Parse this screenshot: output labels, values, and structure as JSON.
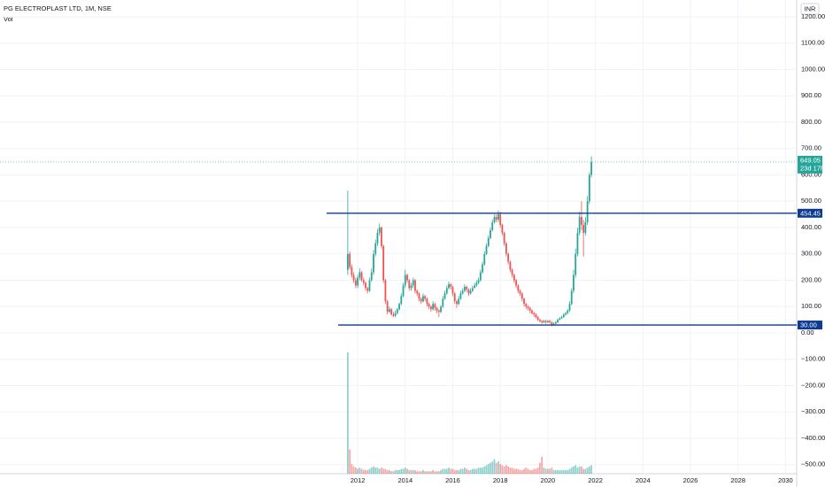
{
  "chart_data": {
    "type": "candlestick",
    "title": "PG ELECTROPLAST LTD, 1M, NSE",
    "volume_label": "Vol",
    "currency": "INR",
    "countdown": "23d 17h",
    "up_color": "#26a69a",
    "down_color": "#ef5350",
    "line_color": "#0d3b91",
    "grid": true,
    "x": [
      2011.583,
      2011.667,
      2011.75,
      2011.833,
      2011.917,
      2012,
      2012.083,
      2012.167,
      2012.25,
      2012.333,
      2012.417,
      2012.5,
      2012.583,
      2012.667,
      2012.75,
      2012.833,
      2012.917,
      2013,
      2013.083,
      2013.167,
      2013.25,
      2013.333,
      2013.417,
      2013.5,
      2013.583,
      2013.667,
      2013.75,
      2013.833,
      2013.917,
      2014,
      2014.083,
      2014.167,
      2014.25,
      2014.333,
      2014.417,
      2014.5,
      2014.583,
      2014.667,
      2014.75,
      2014.833,
      2014.917,
      2015,
      2015.083,
      2015.167,
      2015.25,
      2015.333,
      2015.417,
      2015.5,
      2015.583,
      2015.667,
      2015.75,
      2015.833,
      2015.917,
      2016,
      2016.083,
      2016.167,
      2016.25,
      2016.333,
      2016.417,
      2016.5,
      2016.583,
      2016.667,
      2016.75,
      2016.833,
      2016.917,
      2017,
      2017.083,
      2017.167,
      2017.25,
      2017.333,
      2017.417,
      2017.5,
      2017.583,
      2017.667,
      2017.75,
      2017.833,
      2017.917,
      2018,
      2018.083,
      2018.167,
      2018.25,
      2018.333,
      2018.417,
      2018.5,
      2018.583,
      2018.667,
      2018.75,
      2018.833,
      2018.917,
      2019,
      2019.083,
      2019.167,
      2019.25,
      2019.333,
      2019.417,
      2019.5,
      2019.583,
      2019.667,
      2019.75,
      2019.833,
      2019.917,
      2020,
      2020.083,
      2020.167,
      2020.25,
      2020.333,
      2020.417,
      2020.5,
      2020.583,
      2020.667,
      2020.75,
      2020.833,
      2020.917,
      2021,
      2021.083,
      2021.167,
      2021.25,
      2021.333,
      2021.417,
      2021.5,
      2021.583,
      2021.667,
      2021.75,
      2021.833
    ],
    "open": [
      240,
      300,
      250,
      220,
      200,
      180,
      210,
      230,
      200,
      190,
      170,
      160,
      200,
      230,
      300,
      340,
      380,
      400,
      330,
      200,
      120,
      80,
      90,
      70,
      65,
      75,
      90,
      110,
      140,
      180,
      220,
      200,
      170,
      180,
      200,
      160,
      150,
      130,
      120,
      140,
      130,
      110,
      100,
      90,
      110,
      95,
      85,
      80,
      100,
      130,
      150,
      170,
      185,
      175,
      150,
      120,
      110,
      130,
      150,
      160,
      175,
      165,
      150,
      160,
      170,
      180,
      190,
      200,
      230,
      260,
      300,
      330,
      360,
      390,
      420,
      440,
      430,
      450,
      410,
      380,
      340,
      300,
      270,
      240,
      220,
      200,
      180,
      160,
      150,
      130,
      110,
      100,
      95,
      85,
      75,
      70,
      60,
      50,
      45,
      40,
      45,
      40,
      45,
      40,
      30,
      35,
      40,
      50,
      55,
      60,
      70,
      75,
      85,
      110,
      160,
      220,
      300,
      380,
      440,
      410,
      380,
      420,
      500,
      600
    ],
    "high": [
      540,
      310,
      260,
      230,
      210,
      220,
      245,
      235,
      210,
      195,
      175,
      210,
      245,
      315,
      355,
      395,
      415,
      405,
      335,
      205,
      125,
      100,
      95,
      80,
      85,
      95,
      115,
      150,
      190,
      240,
      225,
      205,
      190,
      210,
      205,
      165,
      155,
      135,
      150,
      145,
      135,
      115,
      105,
      120,
      115,
      100,
      90,
      105,
      140,
      160,
      180,
      195,
      190,
      180,
      155,
      125,
      140,
      160,
      170,
      185,
      180,
      170,
      170,
      180,
      190,
      200,
      210,
      240,
      270,
      310,
      340,
      370,
      400,
      430,
      450,
      450,
      465,
      460,
      415,
      385,
      345,
      305,
      275,
      245,
      225,
      205,
      185,
      165,
      155,
      135,
      115,
      105,
      100,
      90,
      80,
      75,
      65,
      55,
      50,
      50,
      50,
      50,
      50,
      45,
      40,
      45,
      55,
      60,
      65,
      75,
      80,
      90,
      120,
      170,
      240,
      320,
      400,
      460,
      500,
      430,
      440,
      520,
      610,
      670
    ],
    "low": [
      220,
      240,
      210,
      190,
      170,
      170,
      200,
      195,
      180,
      160,
      150,
      155,
      195,
      220,
      290,
      330,
      370,
      320,
      190,
      110,
      70,
      75,
      65,
      60,
      60,
      70,
      85,
      105,
      135,
      170,
      190,
      160,
      160,
      170,
      150,
      140,
      120,
      110,
      115,
      120,
      100,
      90,
      80,
      85,
      85,
      75,
      60,
      75,
      95,
      125,
      145,
      165,
      165,
      140,
      110,
      95,
      105,
      125,
      145,
      155,
      155,
      140,
      145,
      155,
      170,
      175,
      185,
      195,
      225,
      255,
      295,
      325,
      355,
      385,
      415,
      420,
      420,
      400,
      370,
      330,
      290,
      260,
      230,
      210,
      190,
      170,
      150,
      140,
      120,
      100,
      90,
      85,
      75,
      70,
      60,
      55,
      45,
      40,
      35,
      38,
      35,
      38,
      35,
      25,
      28,
      33,
      38,
      48,
      53,
      57,
      65,
      70,
      80,
      105,
      150,
      210,
      290,
      370,
      390,
      290,
      370,
      410,
      490,
      590
    ],
    "close": [
      300,
      250,
      220,
      200,
      180,
      210,
      230,
      200,
      190,
      170,
      160,
      200,
      230,
      300,
      340,
      380,
      400,
      330,
      200,
      120,
      80,
      90,
      70,
      65,
      75,
      90,
      110,
      140,
      180,
      220,
      200,
      170,
      180,
      200,
      160,
      150,
      130,
      120,
      140,
      130,
      110,
      100,
      90,
      110,
      95,
      85,
      80,
      100,
      130,
      150,
      170,
      185,
      175,
      150,
      120,
      110,
      130,
      150,
      160,
      175,
      165,
      150,
      160,
      170,
      180,
      190,
      200,
      230,
      260,
      300,
      330,
      360,
      390,
      420,
      440,
      430,
      450,
      410,
      380,
      340,
      300,
      270,
      240,
      220,
      200,
      180,
      160,
      150,
      130,
      110,
      100,
      95,
      85,
      75,
      70,
      60,
      50,
      45,
      40,
      45,
      40,
      45,
      40,
      30,
      35,
      40,
      50,
      55,
      60,
      70,
      75,
      85,
      110,
      160,
      220,
      300,
      380,
      440,
      410,
      380,
      420,
      500,
      600,
      649.05
    ],
    "volume": [
      100,
      20,
      8,
      6,
      5,
      4,
      5,
      4,
      3,
      3,
      3,
      4,
      5,
      6,
      5,
      5,
      4,
      5,
      4,
      4,
      3,
      3,
      2,
      2,
      3,
      3,
      3,
      4,
      4,
      5,
      4,
      3,
      3,
      3,
      3,
      2,
      2,
      2,
      3,
      2,
      2,
      2,
      2,
      3,
      2,
      2,
      2,
      3,
      4,
      4,
      4,
      5,
      4,
      4,
      3,
      3,
      3,
      4,
      4,
      5,
      4,
      3,
      3,
      4,
      4,
      4,
      5,
      5,
      5,
      6,
      7,
      8,
      9,
      10,
      12,
      9,
      10,
      8,
      7,
      6,
      7,
      6,
      5,
      5,
      4,
      4,
      4,
      3,
      3,
      4,
      5,
      4,
      3,
      3,
      4,
      4,
      5,
      9,
      14,
      5,
      4,
      4,
      4,
      5,
      3,
      3,
      3,
      3,
      3,
      3,
      3,
      3,
      4,
      5,
      6,
      7,
      5,
      6,
      6,
      4,
      4,
      5,
      6,
      7
    ],
    "hlines": [
      454.45,
      {
        "value": 30,
        "label": "30.00"
      }
    ],
    "xlim": [
      1996.95,
      2030.47
    ],
    "xticks": [
      2012,
      2014,
      2016,
      2018,
      2020,
      2022,
      2024,
      2026,
      2028,
      2030
    ],
    "ylim": [
      -534.5,
      1263.9
    ],
    "yticks": [
      {
        "value": 1200,
        "label": "1200.00"
      },
      {
        "value": 1100,
        "label": "1100.00"
      },
      {
        "value": 1000,
        "label": "1000.00"
      },
      {
        "value": 900,
        "label": "900.00"
      },
      {
        "value": 800,
        "label": "800.00"
      },
      {
        "value": 700,
        "label": "700.00"
      },
      {
        "value": 600,
        "label": "600.00"
      },
      {
        "value": 500,
        "label": "500.00"
      },
      {
        "value": 400,
        "label": "400.00"
      },
      {
        "value": 300,
        "label": "300.00"
      },
      {
        "value": 200,
        "label": "200.00"
      },
      {
        "value": 100,
        "label": "100.00"
      },
      {
        "value": 0,
        "label": "0.00"
      },
      {
        "value": -100,
        "label": "−100.00"
      },
      {
        "value": -200,
        "label": "−200.00"
      },
      {
        "value": -300,
        "label": "−300.00"
      },
      {
        "value": -400,
        "label": "−400.00"
      },
      {
        "value": -500,
        "label": "−500.00"
      }
    ]
  }
}
